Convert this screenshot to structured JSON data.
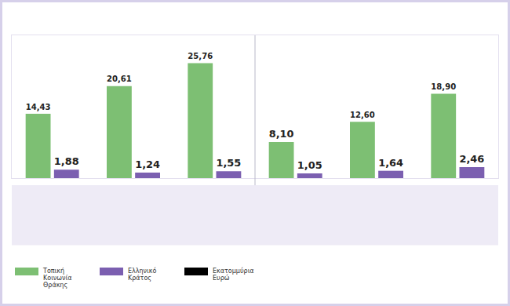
{
  "chart_data": {
    "type": "bar",
    "categories": [
      null,
      null,
      null,
      null,
      null,
      null
    ],
    "series": [
      {
        "name": "Τοπική Κοινωνία Θράκης",
        "color": "#7dbf73",
        "values": [
          14.43,
          20.61,
          25.76,
          8.1,
          12.6,
          18.9
        ],
        "value_labels": [
          "14,43",
          "20,61",
          "25,76",
          "8,10",
          "12,60",
          "18,90"
        ]
      },
      {
        "name": "Ελληνικό Κράτος",
        "color": "#7b5fb0",
        "values": [
          1.88,
          1.24,
          1.55,
          1.05,
          1.64,
          2.46
        ],
        "value_labels": [
          "1,88",
          "1,24",
          "1,55",
          "1,05",
          "1,64",
          "2,46"
        ]
      },
      {
        "name": "Εκατομμύρια Ευρώ",
        "color": "#000000",
        "values": [
          null,
          null,
          null,
          null,
          null,
          null
        ]
      }
    ],
    "ylim": [
      0,
      32
    ],
    "yticks": [],
    "data_labels": true,
    "tick_labels": false,
    "grid": false,
    "legend": "bottom"
  }
}
